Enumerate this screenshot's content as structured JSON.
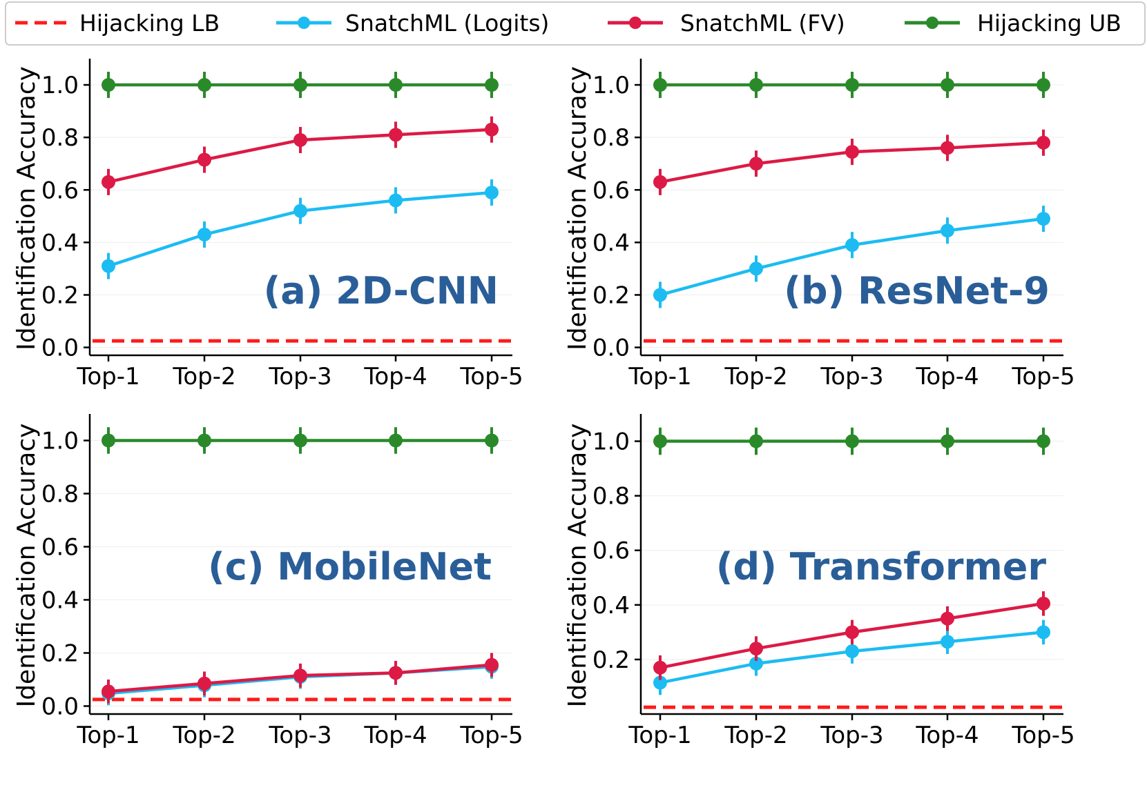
{
  "legend": [
    {
      "label": "Hijacking LB",
      "color": "#ff1a1a",
      "style": "dashed"
    },
    {
      "label": "SnatchML (Logits)",
      "color": "#1cbcf2",
      "style": "solid-marker"
    },
    {
      "label": "SnatchML (FV)",
      "color": "#dc1a45",
      "style": "solid-marker"
    },
    {
      "label": "Hijacking UB",
      "color": "#2a8a2a",
      "style": "solid-marker"
    }
  ],
  "chart_data": [
    {
      "type": "line",
      "title": "(a) 2D-CNN",
      "ylabel": "Identification Accuracy",
      "categories": [
        "Top-1",
        "Top-2",
        "Top-3",
        "Top-4",
        "Top-5"
      ],
      "ylim": [
        -0.03,
        1.1
      ],
      "yticks": [
        "0.0",
        "0.2",
        "0.4",
        "0.6",
        "0.8",
        "1.0"
      ],
      "yticks_values": [
        0.0,
        0.2,
        0.4,
        0.6,
        0.8,
        1.0
      ],
      "lower_bound": 0.025,
      "series": [
        {
          "name": "SnatchML (Logits)",
          "values": [
            0.31,
            0.43,
            0.52,
            0.56,
            0.59
          ],
          "err": 0.05
        },
        {
          "name": "SnatchML (FV)",
          "values": [
            0.63,
            0.715,
            0.79,
            0.81,
            0.83
          ],
          "err": 0.05
        },
        {
          "name": "Hijacking UB",
          "values": [
            1.0,
            1.0,
            1.0,
            1.0,
            1.0
          ],
          "err": 0.05
        }
      ]
    },
    {
      "type": "line",
      "title": "(b) ResNet-9",
      "ylabel": "Identification Accuracy",
      "categories": [
        "Top-1",
        "Top-2",
        "Top-3",
        "Top-4",
        "Top-5"
      ],
      "ylim": [
        -0.03,
        1.1
      ],
      "yticks": [
        "0.0",
        "0.2",
        "0.4",
        "0.6",
        "0.8",
        "1.0"
      ],
      "yticks_values": [
        0.0,
        0.2,
        0.4,
        0.6,
        0.8,
        1.0
      ],
      "lower_bound": 0.025,
      "series": [
        {
          "name": "SnatchML (Logits)",
          "values": [
            0.2,
            0.3,
            0.39,
            0.445,
            0.49
          ],
          "err": 0.05
        },
        {
          "name": "SnatchML (FV)",
          "values": [
            0.63,
            0.7,
            0.745,
            0.76,
            0.78
          ],
          "err": 0.05
        },
        {
          "name": "Hijacking UB",
          "values": [
            1.0,
            1.0,
            1.0,
            1.0,
            1.0
          ],
          "err": 0.05
        }
      ]
    },
    {
      "type": "line",
      "title": "(c) MobileNet",
      "ylabel": "Identification Accuracy",
      "categories": [
        "Top-1",
        "Top-2",
        "Top-3",
        "Top-4",
        "Top-5"
      ],
      "ylim": [
        -0.03,
        1.1
      ],
      "yticks": [
        "0.0",
        "0.2",
        "0.4",
        "0.6",
        "0.8",
        "1.0"
      ],
      "yticks_values": [
        0.0,
        0.2,
        0.4,
        0.6,
        0.8,
        1.0
      ],
      "lower_bound": 0.025,
      "series": [
        {
          "name": "SnatchML (Logits)",
          "values": [
            0.048,
            0.078,
            0.11,
            0.125,
            0.148
          ],
          "err": 0.045
        },
        {
          "name": "SnatchML (FV)",
          "values": [
            0.055,
            0.085,
            0.115,
            0.125,
            0.155
          ],
          "err": 0.045
        },
        {
          "name": "Hijacking UB",
          "values": [
            1.0,
            1.0,
            1.0,
            1.0,
            1.0
          ],
          "err": 0.05
        }
      ]
    },
    {
      "type": "line",
      "title": "(d) Transformer",
      "ylabel": "Identification Accuracy",
      "categories": [
        "Top-1",
        "Top-2",
        "Top-3",
        "Top-4",
        "Top-5"
      ],
      "ylim": [
        0.0,
        1.1
      ],
      "yticks": [
        "0.2",
        "0.4",
        "0.6",
        "0.8",
        "1.0"
      ],
      "yticks_values": [
        0.2,
        0.4,
        0.6,
        0.8,
        1.0
      ],
      "lower_bound": 0.025,
      "series": [
        {
          "name": "SnatchML (Logits)",
          "values": [
            0.115,
            0.185,
            0.23,
            0.265,
            0.3
          ],
          "err": 0.045
        },
        {
          "name": "SnatchML (FV)",
          "values": [
            0.17,
            0.24,
            0.3,
            0.35,
            0.405
          ],
          "err": 0.045
        },
        {
          "name": "Hijacking UB",
          "values": [
            1.0,
            1.0,
            1.0,
            1.0,
            1.0
          ],
          "err": 0.05
        }
      ]
    }
  ]
}
